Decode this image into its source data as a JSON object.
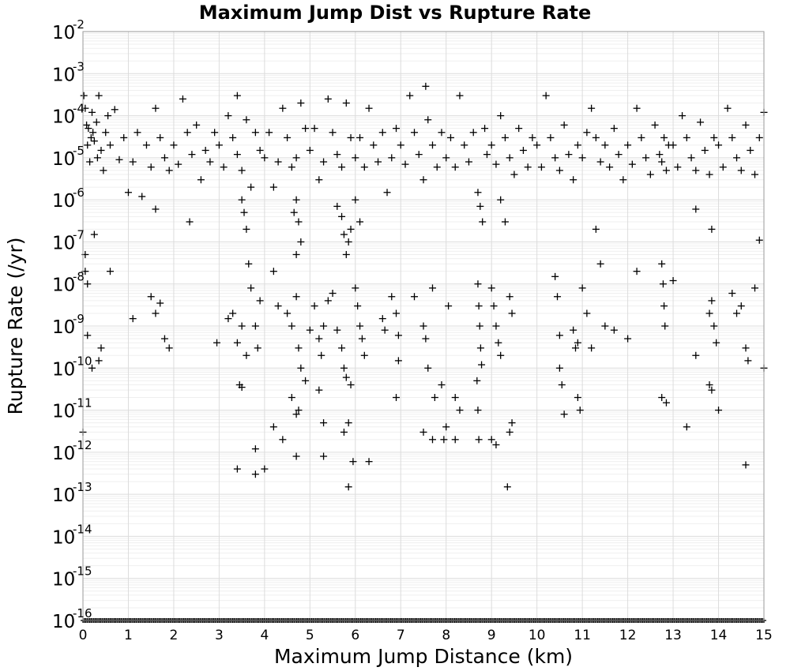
{
  "chart_data": {
    "type": "scatter",
    "title": "Maximum Jump Dist vs Rupture Rate",
    "xlabel": "Maximum Jump Distance (km)",
    "ylabel": "Rupture Rate (/yr)",
    "xlim": [
      0,
      15
    ],
    "ylim": [
      1e-16,
      0.01
    ],
    "y_scale": "log",
    "grid": true,
    "marker": "plus",
    "marker_color": "#000000",
    "x_ticks": [
      "0",
      "1",
      "2",
      "3",
      "4",
      "5",
      "6",
      "7",
      "8",
      "9",
      "10",
      "11",
      "12",
      "13",
      "14",
      "15"
    ],
    "y_tick_base": "10",
    "y_tick_exponents": [
      "-2",
      "-3",
      "-4",
      "-5",
      "-6",
      "-7",
      "-8",
      "-9",
      "-10",
      "-11",
      "-12",
      "-13",
      "-14",
      "-15",
      "-16"
    ],
    "points": [
      [
        0.02,
        0.0003
      ],
      [
        0.05,
        0.00015
      ],
      [
        0.08,
        6e-05
      ],
      [
        0.1,
        2e-05
      ],
      [
        0.12,
        5e-05
      ],
      [
        0.15,
        8e-06
      ],
      [
        0.18,
        3e-05
      ],
      [
        0.2,
        0.00012
      ],
      [
        0.22,
        4e-05
      ],
      [
        0.25,
        2.5e-05
      ],
      [
        0.3,
        7e-05
      ],
      [
        0.32,
        1e-05
      ],
      [
        0.35,
        0.0003
      ],
      [
        0.4,
        1.5e-05
      ],
      [
        0.45,
        5e-06
      ],
      [
        0.5,
        4e-05
      ],
      [
        0.55,
        0.0001
      ],
      [
        0.6,
        2e-05
      ],
      [
        0.05,
        2e-08
      ],
      [
        0.1,
        6e-10
      ],
      [
        0.2,
        1e-10
      ],
      [
        0.35,
        1.5e-10
      ],
      [
        0.4,
        3e-10
      ],
      [
        0.6,
        2e-08
      ],
      [
        0.25,
        1.5e-07
      ],
      [
        0.0,
        3e-12
      ],
      [
        0.05,
        5e-08
      ],
      [
        0.1,
        1e-08
      ],
      [
        0.7,
        0.00014
      ],
      [
        0.8,
        9e-06
      ],
      [
        0.9,
        3e-05
      ],
      [
        1.0,
        1.5e-06
      ],
      [
        1.1,
        8e-06
      ],
      [
        1.2,
        4e-05
      ],
      [
        1.3,
        1.2e-06
      ],
      [
        1.4,
        2e-05
      ],
      [
        1.5,
        6e-06
      ],
      [
        1.6,
        0.00015
      ],
      [
        1.7,
        3e-05
      ],
      [
        1.8,
        1e-05
      ],
      [
        1.9,
        5e-06
      ],
      [
        1.5,
        5e-09
      ],
      [
        1.6,
        2e-09
      ],
      [
        1.7,
        3.5e-09
      ],
      [
        1.8,
        5e-10
      ],
      [
        1.9,
        3e-10
      ],
      [
        1.1,
        1.5e-09
      ],
      [
        1.6,
        6e-07
      ],
      [
        2.0,
        2e-05
      ],
      [
        2.1,
        7e-06
      ],
      [
        2.2,
        0.00025
      ],
      [
        2.3,
        4e-05
      ],
      [
        2.35,
        3e-07
      ],
      [
        2.4,
        1.2e-05
      ],
      [
        2.5,
        6e-05
      ],
      [
        2.6,
        3e-06
      ],
      [
        2.7,
        1.5e-05
      ],
      [
        2.8,
        8e-06
      ],
      [
        2.9,
        4e-05
      ],
      [
        2.95,
        4e-10
      ],
      [
        3.0,
        2e-05
      ],
      [
        3.1,
        6e-06
      ],
      [
        3.2,
        0.0001
      ],
      [
        3.3,
        3e-05
      ],
      [
        3.4,
        1.2e-05
      ],
      [
        3.5,
        5e-06
      ],
      [
        3.6,
        8e-05
      ],
      [
        3.7,
        2e-06
      ],
      [
        3.8,
        4e-05
      ],
      [
        3.9,
        1.5e-05
      ],
      [
        3.4,
        0.0003
      ],
      [
        3.5,
        1e-06
      ],
      [
        3.6,
        2e-07
      ],
      [
        3.55,
        5e-07
      ],
      [
        3.65,
        3e-08
      ],
      [
        3.2,
        1.5e-09
      ],
      [
        3.3,
        2e-09
      ],
      [
        3.4,
        4e-10
      ],
      [
        3.5,
        1e-09
      ],
      [
        3.6,
        2e-10
      ],
      [
        3.7,
        8e-09
      ],
      [
        3.8,
        1e-09
      ],
      [
        3.85,
        3e-10
      ],
      [
        3.9,
        4e-09
      ],
      [
        3.45,
        4e-11
      ],
      [
        3.5,
        3.5e-11
      ],
      [
        3.4,
        4e-13
      ],
      [
        3.8,
        1.2e-12
      ],
      [
        3.8,
        3e-13
      ],
      [
        4.0,
        4e-13
      ],
      [
        4.0,
        1e-05
      ],
      [
        4.1,
        4e-05
      ],
      [
        4.2,
        2e-06
      ],
      [
        4.3,
        8e-06
      ],
      [
        4.4,
        0.00015
      ],
      [
        4.5,
        3e-05
      ],
      [
        4.6,
        6e-06
      ],
      [
        4.7,
        1e-05
      ],
      [
        4.8,
        0.0002
      ],
      [
        4.9,
        5e-05
      ],
      [
        4.65,
        5e-07
      ],
      [
        4.7,
        1e-06
      ],
      [
        4.75,
        3e-07
      ],
      [
        4.8,
        1e-07
      ],
      [
        4.2,
        2e-08
      ],
      [
        4.3,
        3e-09
      ],
      [
        4.5,
        2e-09
      ],
      [
        4.6,
        1e-09
      ],
      [
        4.7,
        5e-09
      ],
      [
        4.75,
        3e-10
      ],
      [
        4.8,
        1e-10
      ],
      [
        4.9,
        5e-11
      ],
      [
        4.6,
        2e-11
      ],
      [
        4.7,
        8e-12
      ],
      [
        4.75,
        1e-11
      ],
      [
        4.2,
        4e-12
      ],
      [
        4.4,
        2e-12
      ],
      [
        4.7,
        8e-13
      ],
      [
        4.7,
        5e-08
      ],
      [
        5.0,
        1.5e-05
      ],
      [
        5.1,
        5e-05
      ],
      [
        5.2,
        3e-06
      ],
      [
        5.3,
        8e-06
      ],
      [
        5.4,
        0.00025
      ],
      [
        5.5,
        4e-05
      ],
      [
        5.6,
        1.2e-05
      ],
      [
        5.7,
        6e-06
      ],
      [
        5.8,
        0.0002
      ],
      [
        5.9,
        3e-05
      ],
      [
        5.6,
        7e-07
      ],
      [
        5.7,
        4e-07
      ],
      [
        5.75,
        1.5e-07
      ],
      [
        5.8,
        5e-08
      ],
      [
        5.85,
        1e-07
      ],
      [
        5.9,
        2e-07
      ],
      [
        5.0,
        8e-10
      ],
      [
        5.1,
        3e-09
      ],
      [
        5.2,
        5e-10
      ],
      [
        5.25,
        2e-10
      ],
      [
        5.3,
        1e-09
      ],
      [
        5.4,
        4e-09
      ],
      [
        5.5,
        6e-09
      ],
      [
        5.6,
        8e-10
      ],
      [
        5.7,
        3e-10
      ],
      [
        5.75,
        1e-10
      ],
      [
        5.8,
        6e-11
      ],
      [
        5.9,
        4e-11
      ],
      [
        5.2,
        3e-11
      ],
      [
        5.3,
        5e-12
      ],
      [
        5.75,
        3e-12
      ],
      [
        5.85,
        5e-12
      ],
      [
        5.3,
        8e-13
      ],
      [
        5.85,
        1.5e-13
      ],
      [
        5.95,
        6e-13
      ],
      [
        6.3,
        6e-13
      ],
      [
        6.0,
        1e-05
      ],
      [
        6.1,
        3e-05
      ],
      [
        6.2,
        6e-06
      ],
      [
        6.3,
        0.00015
      ],
      [
        6.4,
        2e-05
      ],
      [
        6.5,
        8e-06
      ],
      [
        6.6,
        4e-05
      ],
      [
        6.7,
        1.5e-06
      ],
      [
        6.8,
        1e-05
      ],
      [
        6.9,
        5e-05
      ],
      [
        6.0,
        8e-09
      ],
      [
        6.05,
        3e-09
      ],
      [
        6.1,
        1e-09
      ],
      [
        6.15,
        5e-10
      ],
      [
        6.2,
        2e-10
      ],
      [
        6.6,
        1.5e-09
      ],
      [
        6.65,
        8e-10
      ],
      [
        6.8,
        5e-09
      ],
      [
        6.9,
        2e-09
      ],
      [
        6.95,
        6e-10
      ],
      [
        6.0,
        1e-06
      ],
      [
        6.1,
        3e-07
      ],
      [
        6.95,
        1.5e-10
      ],
      [
        6.9,
        2e-11
      ],
      [
        7.0,
        2e-05
      ],
      [
        7.1,
        7e-06
      ],
      [
        7.2,
        0.0003
      ],
      [
        7.3,
        4e-05
      ],
      [
        7.4,
        1.2e-05
      ],
      [
        7.5,
        3e-06
      ],
      [
        7.55,
        0.0005
      ],
      [
        7.6,
        8e-05
      ],
      [
        7.7,
        2e-05
      ],
      [
        7.8,
        6e-06
      ],
      [
        7.9,
        4e-05
      ],
      [
        7.3,
        5e-09
      ],
      [
        7.5,
        1e-09
      ],
      [
        7.55,
        5e-10
      ],
      [
        7.6,
        1e-10
      ],
      [
        7.7,
        8e-09
      ],
      [
        7.75,
        2e-11
      ],
      [
        7.5,
        3e-12
      ],
      [
        7.7,
        2e-12
      ],
      [
        7.9,
        4e-11
      ],
      [
        7.95,
        2e-12
      ],
      [
        8.0,
        1e-05
      ],
      [
        8.1,
        3e-05
      ],
      [
        8.2,
        6e-06
      ],
      [
        8.3,
        0.0003
      ],
      [
        8.4,
        2e-05
      ],
      [
        8.5,
        8e-06
      ],
      [
        8.6,
        4e-05
      ],
      [
        8.7,
        1.5e-06
      ],
      [
        8.75,
        7e-07
      ],
      [
        8.8,
        3e-07
      ],
      [
        8.85,
        5e-05
      ],
      [
        8.9,
        1.2e-05
      ],
      [
        8.7,
        1e-08
      ],
      [
        8.72,
        3e-09
      ],
      [
        8.74,
        1e-09
      ],
      [
        8.76,
        3e-10
      ],
      [
        8.78,
        1.2e-10
      ],
      [
        8.68,
        5e-11
      ],
      [
        8.7,
        1e-11
      ],
      [
        8.72,
        2e-12
      ],
      [
        8.2,
        2e-11
      ],
      [
        8.3,
        1e-11
      ],
      [
        8.0,
        4e-12
      ],
      [
        8.05,
        3e-09
      ],
      [
        8.2,
        2e-12
      ],
      [
        9.0,
        2e-05
      ],
      [
        9.1,
        7e-06
      ],
      [
        9.2,
        0.0001
      ],
      [
        9.3,
        3e-05
      ],
      [
        9.4,
        1e-05
      ],
      [
        9.5,
        4e-06
      ],
      [
        9.6,
        5e-05
      ],
      [
        9.7,
        1.5e-05
      ],
      [
        9.8,
        6e-06
      ],
      [
        9.9,
        3e-05
      ],
      [
        9.0,
        8e-09
      ],
      [
        9.05,
        3e-09
      ],
      [
        9.1,
        1e-09
      ],
      [
        9.15,
        4e-10
      ],
      [
        9.2,
        2e-10
      ],
      [
        9.4,
        5e-09
      ],
      [
        9.45,
        2e-09
      ],
      [
        9.0,
        2e-12
      ],
      [
        9.1,
        1.5e-12
      ],
      [
        9.4,
        3e-12
      ],
      [
        9.45,
        5e-12
      ],
      [
        9.35,
        1.5e-13
      ],
      [
        9.3,
        3e-07
      ],
      [
        9.2,
        1e-06
      ],
      [
        10.0,
        2e-05
      ],
      [
        10.1,
        6e-06
      ],
      [
        10.2,
        0.0003
      ],
      [
        10.3,
        3e-05
      ],
      [
        10.4,
        1e-05
      ],
      [
        10.5,
        5e-06
      ],
      [
        10.6,
        6e-05
      ],
      [
        10.7,
        1.2e-05
      ],
      [
        10.8,
        3e-06
      ],
      [
        10.9,
        2e-05
      ],
      [
        10.4,
        1.5e-08
      ],
      [
        10.45,
        5e-09
      ],
      [
        10.5,
        1e-10
      ],
      [
        10.55,
        4e-11
      ],
      [
        10.6,
        8e-12
      ],
      [
        10.8,
        8e-10
      ],
      [
        10.85,
        3e-10
      ],
      [
        10.9,
        2e-11
      ],
      [
        10.95,
        1e-11
      ],
      [
        10.5,
        6e-10
      ],
      [
        10.9,
        4e-10
      ],
      [
        11.0,
        1e-05
      ],
      [
        11.1,
        4e-05
      ],
      [
        11.2,
        0.00015
      ],
      [
        11.3,
        3e-05
      ],
      [
        11.4,
        8e-06
      ],
      [
        11.5,
        2e-05
      ],
      [
        11.6,
        6e-06
      ],
      [
        11.7,
        5e-05
      ],
      [
        11.8,
        1.2e-05
      ],
      [
        11.9,
        3e-06
      ],
      [
        11.0,
        8e-09
      ],
      [
        11.1,
        2e-09
      ],
      [
        11.2,
        3e-10
      ],
      [
        11.4,
        3e-08
      ],
      [
        11.5,
        1e-09
      ],
      [
        11.7,
        8e-10
      ],
      [
        11.3,
        2e-07
      ],
      [
        12.0,
        2e-05
      ],
      [
        12.1,
        7e-06
      ],
      [
        12.2,
        0.00015
      ],
      [
        12.3,
        3e-05
      ],
      [
        12.4,
        1e-05
      ],
      [
        12.5,
        4e-06
      ],
      [
        12.6,
        6e-05
      ],
      [
        12.7,
        1.2e-05
      ],
      [
        12.75,
        8e-06
      ],
      [
        12.8,
        3e-05
      ],
      [
        12.85,
        5e-06
      ],
      [
        12.9,
        2e-05
      ],
      [
        12.75,
        3e-08
      ],
      [
        12.78,
        1e-08
      ],
      [
        12.8,
        3e-09
      ],
      [
        12.82,
        1e-09
      ],
      [
        12.75,
        2e-11
      ],
      [
        12.85,
        1.5e-11
      ],
      [
        12.0,
        5e-10
      ],
      [
        12.2,
        2e-08
      ],
      [
        13.0,
        1.2e-08
      ],
      [
        13.0,
        2e-05
      ],
      [
        13.1,
        6e-06
      ],
      [
        13.2,
        0.0001
      ],
      [
        13.3,
        3e-05
      ],
      [
        13.4,
        1e-05
      ],
      [
        13.5,
        5e-06
      ],
      [
        13.6,
        7e-05
      ],
      [
        13.7,
        1.5e-05
      ],
      [
        13.8,
        4e-06
      ],
      [
        13.9,
        3e-05
      ],
      [
        13.3,
        4e-12
      ],
      [
        13.5,
        6e-07
      ],
      [
        13.8,
        2e-09
      ],
      [
        13.85,
        4e-09
      ],
      [
        13.9,
        1e-09
      ],
      [
        13.95,
        4e-10
      ],
      [
        13.5,
        2e-10
      ],
      [
        13.8,
        4e-11
      ],
      [
        13.85,
        3e-11
      ],
      [
        14.0,
        1e-11
      ],
      [
        13.85,
        2e-07
      ],
      [
        14.0,
        2e-05
      ],
      [
        14.1,
        6e-06
      ],
      [
        14.2,
        0.00015
      ],
      [
        14.3,
        3e-05
      ],
      [
        14.4,
        1e-05
      ],
      [
        14.5,
        5e-06
      ],
      [
        14.6,
        6e-05
      ],
      [
        14.7,
        1.5e-05
      ],
      [
        14.8,
        4e-06
      ],
      [
        14.9,
        3e-05
      ],
      [
        15.0,
        0.00012
      ],
      [
        14.3,
        6e-09
      ],
      [
        14.4,
        2e-09
      ],
      [
        14.5,
        3e-09
      ],
      [
        14.6,
        3e-10
      ],
      [
        14.65,
        1.5e-10
      ],
      [
        14.8,
        8e-09
      ],
      [
        14.9,
        1.1e-07
      ],
      [
        15.0,
        1e-10
      ],
      [
        14.6,
        5e-13
      ]
    ],
    "baseline_value": 1e-16,
    "baseline_note": "dense row of points at the lower limit across 0 to 15 km"
  }
}
